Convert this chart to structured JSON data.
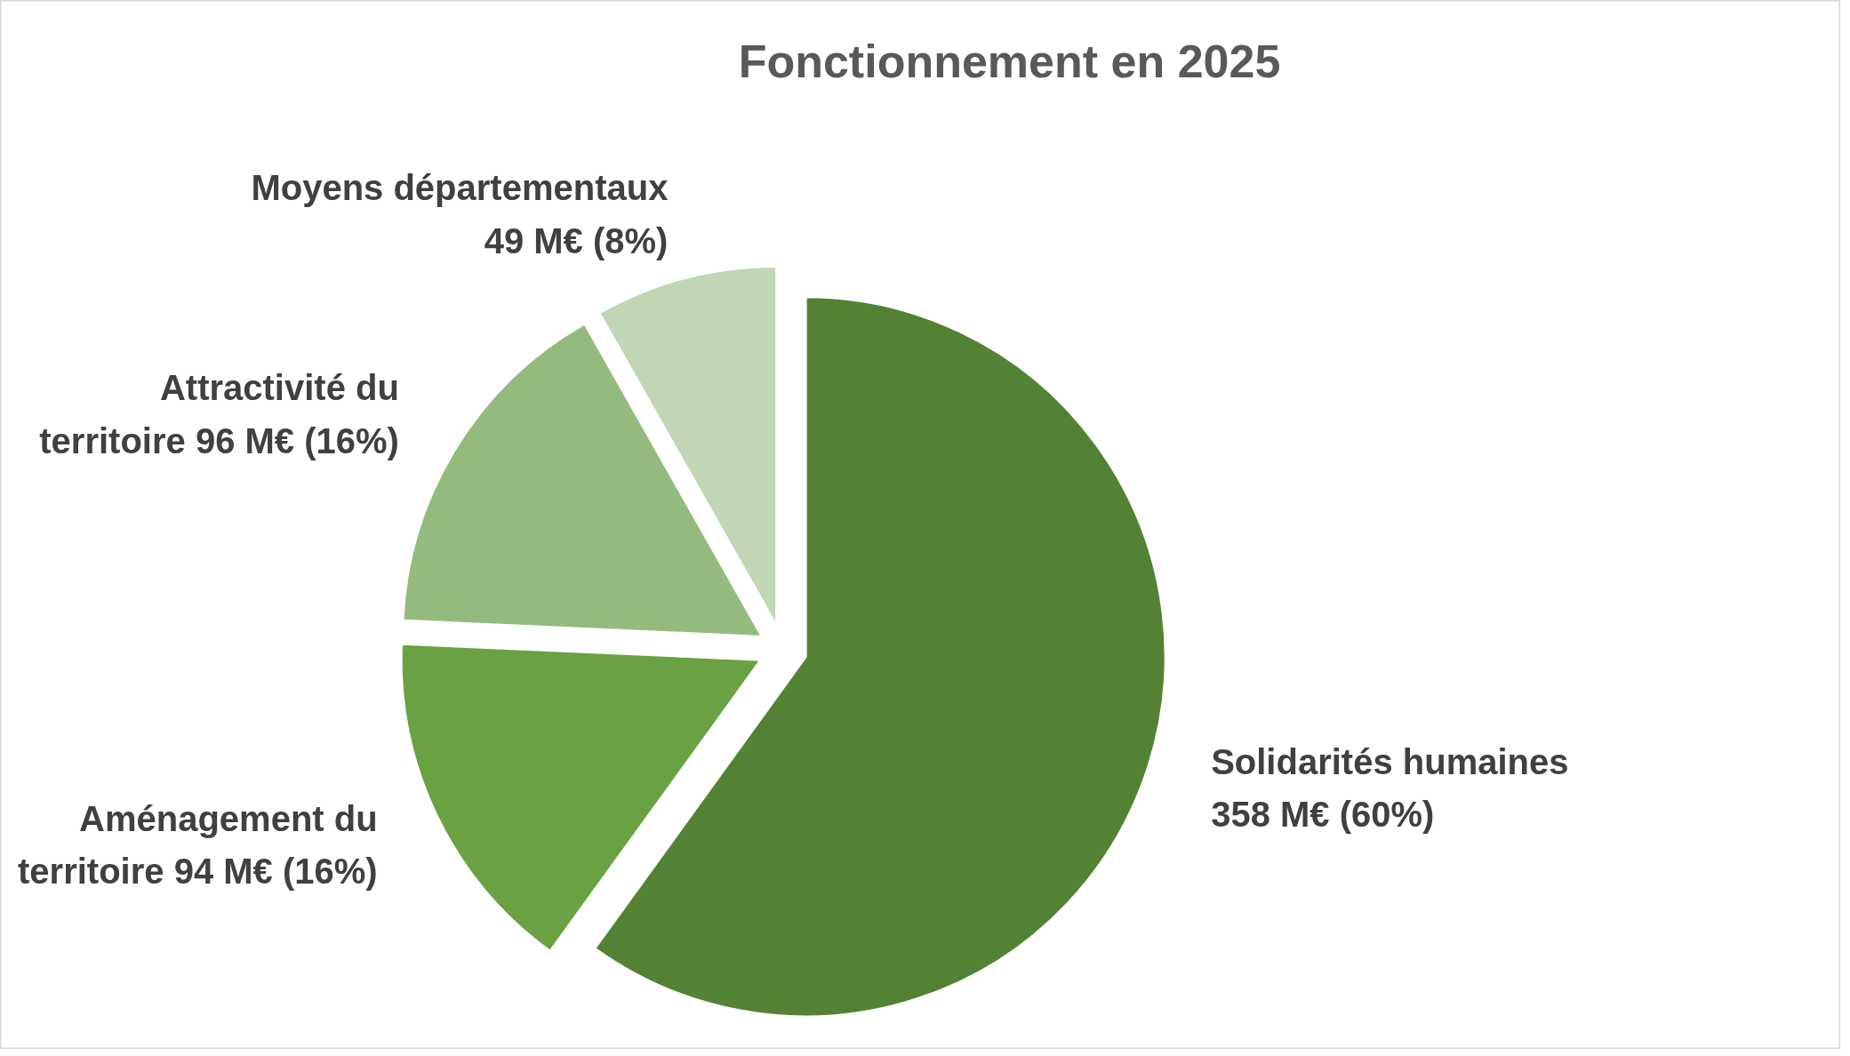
{
  "chart_data": {
    "type": "pie",
    "title": "Fonctionnement en 2025",
    "categories": [
      "Solidarités humaines",
      "Aménagement du territoire",
      "Attractivité du territoire",
      "Moyens départementaux"
    ],
    "values": [
      358,
      94,
      96,
      49
    ],
    "colors": [
      "#548235",
      "#6aa143",
      "#94bb7d",
      "#c0d6b5"
    ],
    "value_labels": [
      "358 M€ (60%)",
      "94 M€ (16%)",
      "96 M€ (16%)",
      "49 M€ (8%)"
    ]
  }
}
